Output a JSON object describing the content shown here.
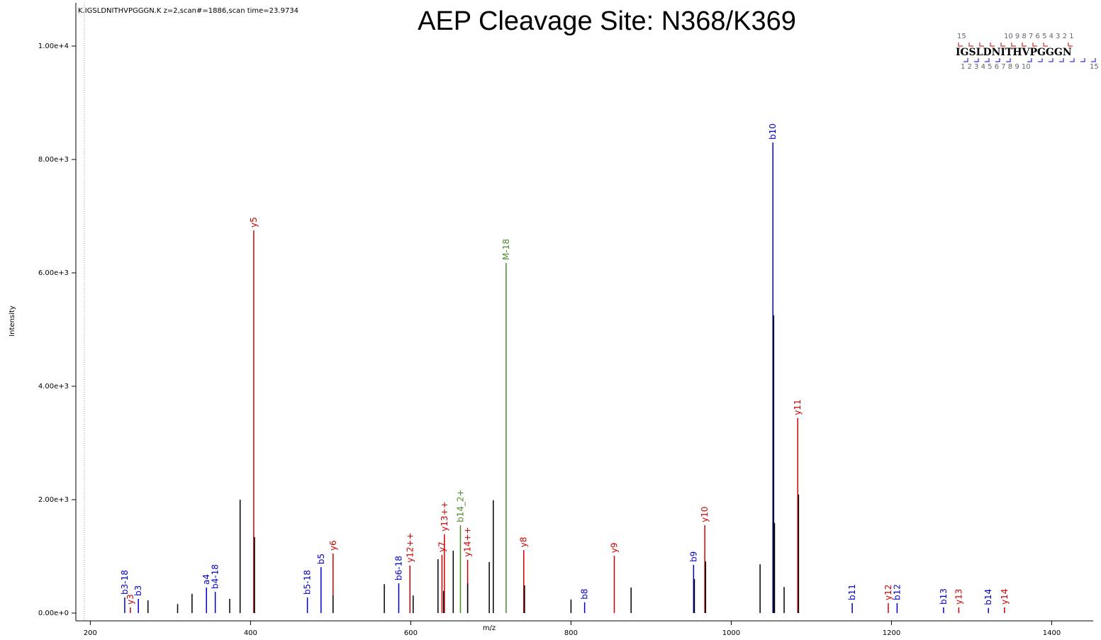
{
  "chart_data": {
    "type": "spectrum",
    "header": "K.IGSLDNITHVPGGGN.K z=2,scan#=1886,scan time=23.9734",
    "title": "AEP Cleavage Site: N368/K369",
    "xlabel": "m/z",
    "ylabel": "Intensity",
    "xlim": [
      182,
      1450
    ],
    "ylim": [
      0,
      10750
    ],
    "xticks": [
      200,
      400,
      600,
      800,
      1000,
      1200,
      1400
    ],
    "yticks": [
      {
        "value": 0,
        "label": "0.00e+0"
      },
      {
        "value": 2000,
        "label": "2.00e+3"
      },
      {
        "value": 4000,
        "label": "4.00e+3"
      },
      {
        "value": 6000,
        "label": "6.00e+3"
      },
      {
        "value": 8000,
        "label": "8.00e+3"
      },
      {
        "value": 10000,
        "label": "1.00e+4"
      }
    ],
    "sequence": "IGSLDNITHVPGGGN",
    "sequence_top_numbers": [
      "15",
      "10 9 8 7 6 5 4 3 2 1"
    ],
    "sequence_bottom_numbers": [
      "1 2 3 4 5 6 7 8 9 10",
      "15"
    ],
    "series": [
      {
        "color": "#0000cc",
        "x": [
          243,
          260,
          345,
          356,
          471,
          488,
          585,
          817,
          953,
          1052,
          1151,
          1207,
          1265,
          1321
        ],
        "values": [
          275,
          250,
          450,
          375,
          275,
          810,
          525,
          190,
          850,
          8300,
          175,
          175,
          100,
          90
        ],
        "labels": [
          "b3-18",
          "b3",
          "a4",
          "b4-18",
          "b5-18",
          "b5",
          "b6-18",
          "b8",
          "b9",
          "b10",
          "b11",
          "b12",
          "b13",
          "b14"
        ]
      },
      {
        "color": "#cc0000",
        "x": [
          250,
          404,
          503,
          599,
          639,
          642,
          671,
          741,
          854,
          967,
          1083,
          1196,
          1284,
          1341
        ],
        "values": [
          100,
          6750,
          1050,
          840,
          1025,
          1390,
          940,
          1110,
          1010,
          1550,
          3440,
          175,
          100,
          100
        ],
        "labels": [
          "y3",
          "y5",
          "y6",
          "y12++",
          "y7",
          "y13++",
          "y14++",
          "y8",
          "y9",
          "y10",
          "y11",
          "y12",
          "y13",
          "y14"
        ]
      },
      {
        "color": "#4a8a2a",
        "x": [
          662,
          719
        ],
        "values": [
          1550,
          6175
        ],
        "labels": [
          "b14_2+",
          "M-18"
        ]
      },
      {
        "color": "#000000",
        "x": [
          387,
          405,
          703,
          698,
          634,
          653,
          567,
          1053,
          1054,
          1084,
          1036,
          875,
          327,
          968,
          954,
          742,
          1066,
          503,
          800,
          641,
          671,
          603,
          272,
          309,
          374
        ],
        "values": [
          2000,
          1340,
          1990,
          900,
          950,
          1100,
          510,
          5250,
          1590,
          2090,
          860,
          450,
          340,
          910,
          600,
          490,
          460,
          310,
          240,
          390,
          525,
          310,
          225,
          160,
          250
        ]
      }
    ]
  }
}
